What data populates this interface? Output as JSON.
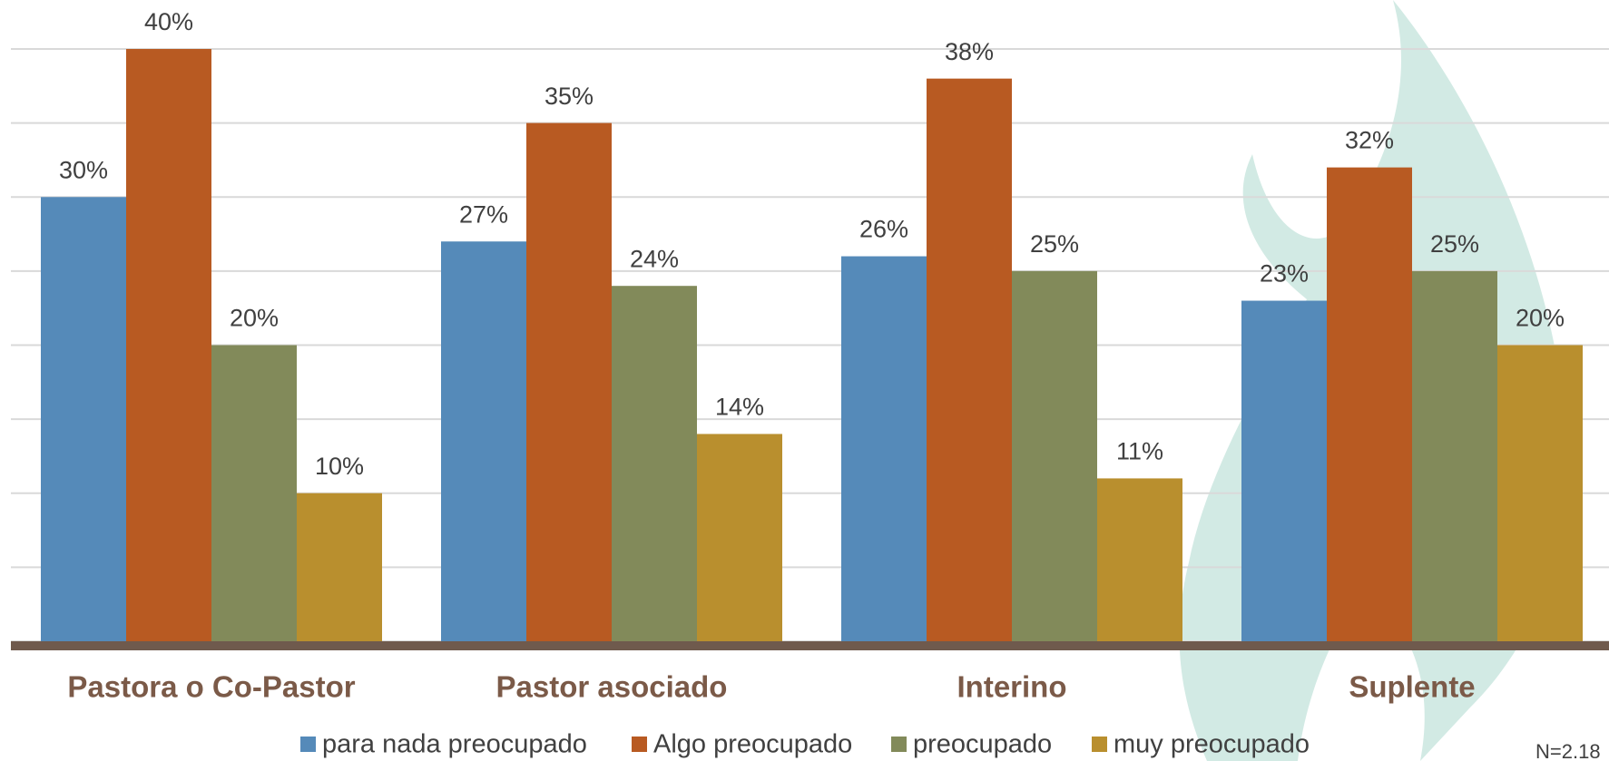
{
  "chart_data": {
    "type": "bar",
    "categories": [
      "Pastora o Co-Pastor",
      "Pastor asociado",
      "Interino",
      "Suplente"
    ],
    "series": [
      {
        "name": "para nada preocupado",
        "color": "#558ab9",
        "values": [
          30,
          27,
          26,
          23
        ],
        "value_labels": [
          "30%",
          "27%",
          "26%",
          "23%"
        ]
      },
      {
        "name": "Algo preocupado",
        "color": "#b85a22",
        "values": [
          40,
          35,
          38,
          32
        ],
        "value_labels": [
          "40%",
          "35%",
          "38%",
          "32%"
        ]
      },
      {
        "name": "preocupado",
        "color": "#828a5a",
        "values": [
          20,
          24,
          25,
          25
        ],
        "value_labels": [
          "20%",
          "24%",
          "25%",
          "25%"
        ]
      },
      {
        "name": "muy preocupado",
        "color": "#b98f2e",
        "values": [
          10,
          14,
          11,
          20
        ],
        "value_labels": [
          "10%",
          "14%",
          "11%",
          "20%"
        ]
      }
    ],
    "ylim": [
      0,
      40
    ],
    "yticks": [
      0,
      5,
      10,
      15,
      20,
      25,
      30,
      35,
      40
    ],
    "grid": true,
    "note": "N=2.18"
  }
}
